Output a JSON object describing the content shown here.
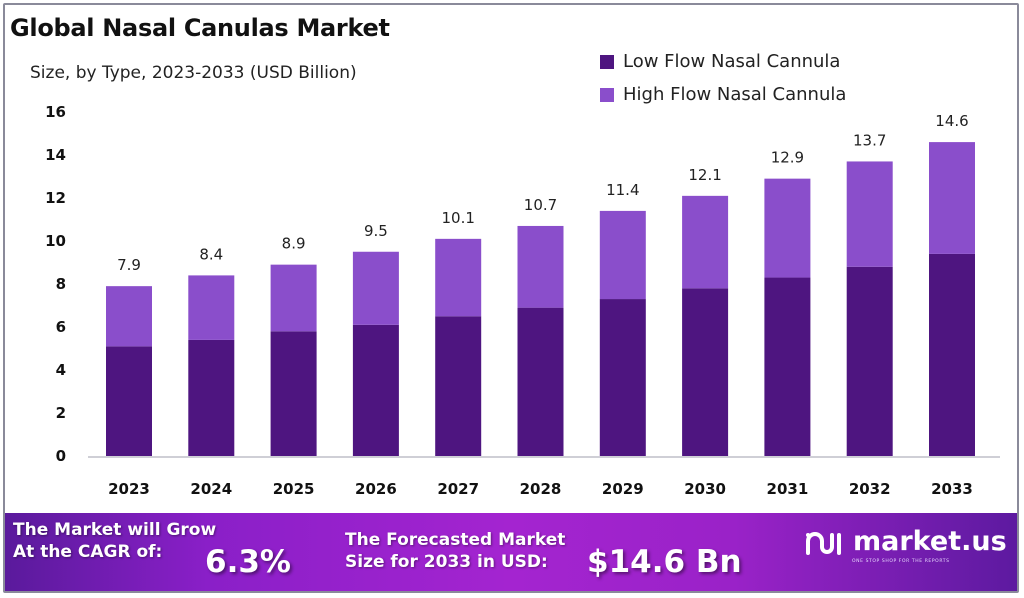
{
  "title": "Global Nasal Canulas Market",
  "subtitle": "Size, by Type, 2023-2033 (USD Billion)",
  "colors": {
    "low_flow": "#4e1580",
    "high_flow": "#8a4ecb",
    "banner_start": "#5a1a9c",
    "banner_mid": "#a424d0"
  },
  "legend": [
    {
      "label": "Low Flow Nasal Cannula",
      "color": "#4e1580"
    },
    {
      "label": "High Flow Nasal Cannula",
      "color": "#8a4ecb"
    }
  ],
  "chart_data": {
    "type": "bar",
    "stacked": true,
    "title": "Global Nasal Canulas Market",
    "subtitle": "Size, by Type, 2023-2033 (USD Billion)",
    "xlabel": "",
    "ylabel": "",
    "ylim": [
      0,
      16
    ],
    "yticks": [
      0,
      2,
      4,
      6,
      8,
      10,
      12,
      14,
      16
    ],
    "grid": false,
    "legend_position": "top-right",
    "categories": [
      "2023",
      "2024",
      "2025",
      "2026",
      "2027",
      "2028",
      "2029",
      "2030",
      "2031",
      "2032",
      "2033"
    ],
    "series": [
      {
        "name": "Low Flow Nasal Cannula",
        "values": [
          5.1,
          5.4,
          5.8,
          6.1,
          6.5,
          6.9,
          7.3,
          7.8,
          8.3,
          8.8,
          9.4
        ]
      },
      {
        "name": "High Flow Nasal Cannula",
        "values": [
          2.8,
          3.0,
          3.1,
          3.4,
          3.6,
          3.8,
          4.1,
          4.3,
          4.6,
          4.9,
          5.2
        ]
      }
    ],
    "totals": [
      7.9,
      8.4,
      8.9,
      9.5,
      10.1,
      10.7,
      11.4,
      12.1,
      12.9,
      13.7,
      14.6
    ],
    "total_labels": [
      "7.9",
      "8.4",
      "8.9",
      "9.5",
      "10.1",
      "10.7",
      "11.4",
      "12.1",
      "12.9",
      "13.7",
      "14.6"
    ]
  },
  "banner": {
    "cagr_line1": "The Market will Grow",
    "cagr_line2": "At the CAGR of:",
    "cagr_value": "6.3%",
    "forecast_line1": "The Forecasted Market",
    "forecast_line2": "Size for 2033 in USD:",
    "forecast_value": "$14.6 Bn",
    "logo_name": "market.us",
    "logo_tagline": "ONE STOP SHOP FOR THE REPORTS"
  }
}
